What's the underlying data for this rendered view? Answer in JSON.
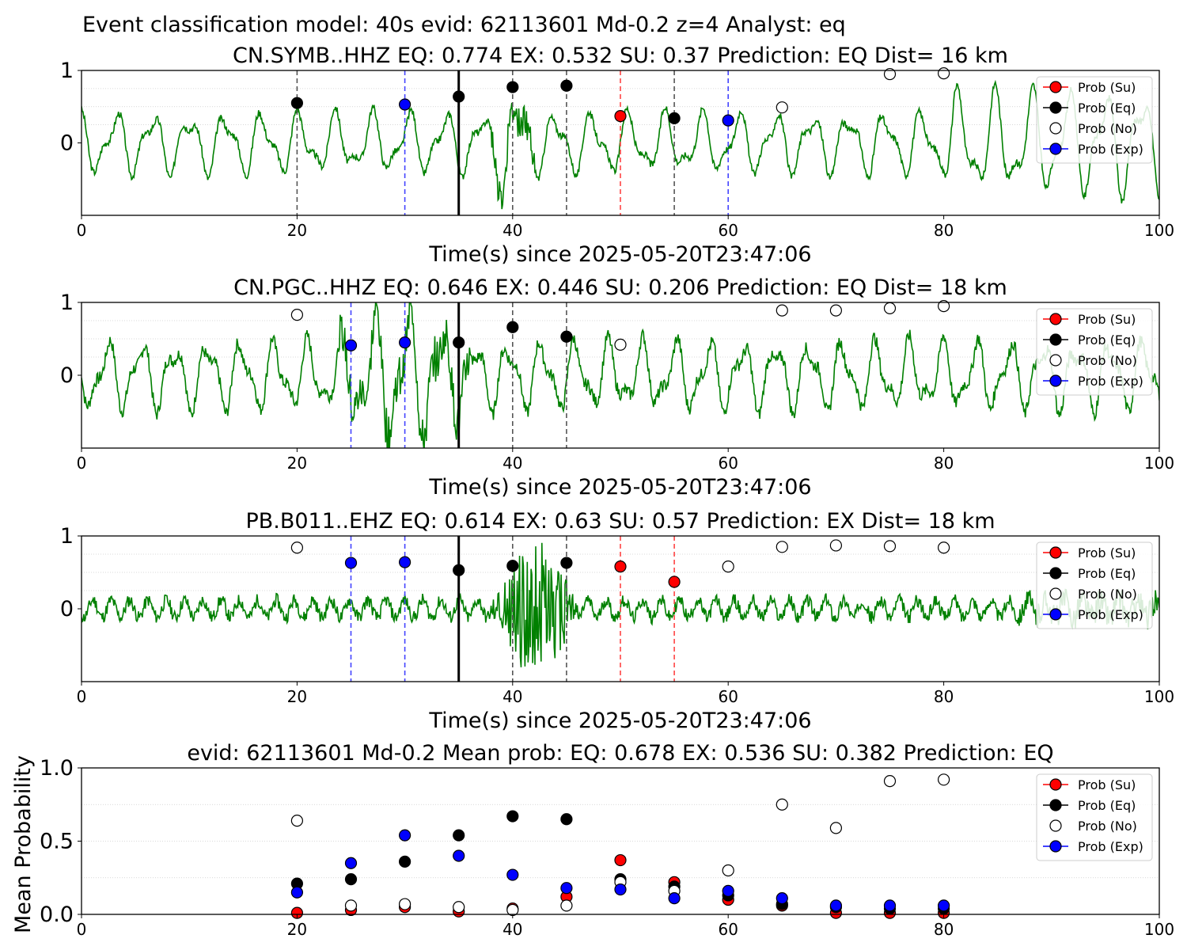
{
  "suptitle": "Event classification model: 40s evid: 62113601 Md-0.2 z=4 Analyst: eq",
  "colors": {
    "waveform": "#008000",
    "su": "#ff0000",
    "eq": "#000000",
    "no": "#ffffff",
    "exp": "#0000ff",
    "grid": "#cccccc"
  },
  "legend_labels": [
    "Prob (Su)",
    "Prob (Eq)",
    "Prob (No)",
    "Prob (Exp)"
  ],
  "chart_data": [
    {
      "type": "line",
      "title": "CN.SYMB..HHZ   EQ: 0.774  EX: 0.532  SU: 0.37   Prediction: EQ    Dist= 16 km",
      "xlabel": "Time(s) since 2025-05-20T23:47:06",
      "xlim": [
        0,
        100
      ],
      "ylim": [
        -1,
        1
      ],
      "xticks": [
        "0",
        "20",
        "40",
        "60",
        "80",
        "100"
      ],
      "yticks": [
        "0",
        "1"
      ],
      "grid": "horizontal dotted",
      "legend": "top-right",
      "event_time": 35,
      "vlines": [
        {
          "x": 20,
          "class": "eq"
        },
        {
          "x": 30,
          "class": "exp"
        },
        {
          "x": 40,
          "class": "eq"
        },
        {
          "x": 45,
          "class": "eq"
        },
        {
          "x": 50,
          "class": "su"
        },
        {
          "x": 55,
          "class": "eq"
        },
        {
          "x": 60,
          "class": "exp"
        }
      ],
      "points": [
        {
          "x": 20,
          "y": 0.55,
          "class": "eq"
        },
        {
          "x": 30,
          "y": 0.53,
          "class": "exp"
        },
        {
          "x": 35,
          "y": 0.64,
          "class": "eq"
        },
        {
          "x": 40,
          "y": 0.77,
          "class": "eq"
        },
        {
          "x": 45,
          "y": 0.79,
          "class": "eq"
        },
        {
          "x": 50,
          "y": 0.37,
          "class": "su"
        },
        {
          "x": 55,
          "y": 0.34,
          "class": "eq"
        },
        {
          "x": 60,
          "y": 0.31,
          "class": "exp"
        },
        {
          "x": 65,
          "y": 0.49,
          "class": "no"
        },
        {
          "x": 75,
          "y": 0.95,
          "class": "no"
        },
        {
          "x": 80,
          "y": 0.96,
          "class": "no"
        }
      ],
      "waveform": {
        "style": "smooth",
        "amplitude": 0.45,
        "period": 3.4,
        "noise": 0.05,
        "burst_start": 38,
        "burst_end": 42,
        "burst_amp": 0.35,
        "seed": 3,
        "late_amp": 0.75,
        "late_start": 78
      }
    },
    {
      "type": "line",
      "title": "CN.PGC..HHZ   EQ: 0.646  EX: 0.446  SU: 0.206   Prediction: EQ    Dist= 18 km",
      "xlabel": "Time(s) since 2025-05-20T23:47:06",
      "xlim": [
        0,
        100
      ],
      "ylim": [
        -1,
        1
      ],
      "xticks": [
        "0",
        "20",
        "40",
        "60",
        "80",
        "100"
      ],
      "yticks": [
        "0",
        "1"
      ],
      "grid": "horizontal dotted",
      "legend": "top-right",
      "event_time": 35,
      "vlines": [
        {
          "x": 25,
          "class": "exp"
        },
        {
          "x": 30,
          "class": "exp"
        },
        {
          "x": 40,
          "class": "eq"
        },
        {
          "x": 45,
          "class": "eq"
        }
      ],
      "points": [
        {
          "x": 20,
          "y": 0.83,
          "class": "no"
        },
        {
          "x": 25,
          "y": 0.41,
          "class": "exp"
        },
        {
          "x": 30,
          "y": 0.45,
          "class": "exp"
        },
        {
          "x": 35,
          "y": 0.45,
          "class": "eq"
        },
        {
          "x": 40,
          "y": 0.66,
          "class": "eq"
        },
        {
          "x": 45,
          "y": 0.53,
          "class": "eq"
        },
        {
          "x": 50,
          "y": 0.42,
          "class": "no"
        },
        {
          "x": 65,
          "y": 0.89,
          "class": "no"
        },
        {
          "x": 70,
          "y": 0.89,
          "class": "no"
        },
        {
          "x": 75,
          "y": 0.92,
          "class": "no"
        },
        {
          "x": 80,
          "y": 0.95,
          "class": "no"
        }
      ],
      "waveform": {
        "style": "smooth",
        "amplitude": 0.5,
        "period": 3.1,
        "noise": 0.09,
        "burst_start": 24,
        "burst_end": 36,
        "burst_amp": 0.45,
        "seed": 7,
        "late_amp": 0.5,
        "late_start": 90
      }
    },
    {
      "type": "line",
      "title": "PB.B011..EHZ   EQ: 0.614  EX: 0.63  SU: 0.57   Prediction: EX    Dist= 18 km",
      "xlabel": "Time(s) since 2025-05-20T23:47:06",
      "xlim": [
        0,
        100
      ],
      "ylim": [
        -1,
        1
      ],
      "xticks": [
        "0",
        "20",
        "40",
        "60",
        "80",
        "100"
      ],
      "yticks": [
        "0",
        "1"
      ],
      "grid": "horizontal dotted",
      "legend": "top-right",
      "event_time": 35,
      "vlines": [
        {
          "x": 25,
          "class": "exp"
        },
        {
          "x": 30,
          "class": "exp"
        },
        {
          "x": 40,
          "class": "eq"
        },
        {
          "x": 45,
          "class": "eq"
        },
        {
          "x": 50,
          "class": "su"
        },
        {
          "x": 55,
          "class": "su"
        }
      ],
      "points": [
        {
          "x": 20,
          "y": 0.84,
          "class": "no"
        },
        {
          "x": 25,
          "y": 0.63,
          "class": "exp"
        },
        {
          "x": 30,
          "y": 0.64,
          "class": "exp"
        },
        {
          "x": 35,
          "y": 0.53,
          "class": "eq"
        },
        {
          "x": 40,
          "y": 0.59,
          "class": "eq"
        },
        {
          "x": 45,
          "y": 0.63,
          "class": "eq"
        },
        {
          "x": 50,
          "y": 0.58,
          "class": "su"
        },
        {
          "x": 55,
          "y": 0.37,
          "class": "su"
        },
        {
          "x": 60,
          "y": 0.58,
          "class": "no"
        },
        {
          "x": 65,
          "y": 0.85,
          "class": "no"
        },
        {
          "x": 70,
          "y": 0.87,
          "class": "no"
        },
        {
          "x": 75,
          "y": 0.86,
          "class": "no"
        },
        {
          "x": 80,
          "y": 0.84,
          "class": "no"
        }
      ],
      "waveform": {
        "style": "noisy",
        "amplitude": 0.09,
        "noise": 0.12,
        "burst_start": 38,
        "burst_end": 46,
        "burst_amp": 0.85,
        "seed": 11,
        "late_amp": 0.18,
        "late_start": 85
      }
    },
    {
      "type": "scatter",
      "title": "evid: 62113601  Md-0.2   Mean prob:   EQ: 0.678  EX: 0.536  SU: 0.382   Prediction: EQ",
      "xlabel": "",
      "ylabel": "Mean Probability",
      "xlim": [
        0,
        100
      ],
      "ylim": [
        0,
        1
      ],
      "xticks": [
        "0",
        "20",
        "40",
        "60",
        "80",
        "100"
      ],
      "yticks": [
        "0.0",
        "0.5",
        "1.0"
      ],
      "grid": "horizontal dotted",
      "legend": "top-right",
      "x": [
        20,
        25,
        30,
        35,
        40,
        45,
        50,
        55,
        60,
        65,
        70,
        75,
        80
      ],
      "series": [
        {
          "name": "Prob (Su)",
          "class": "su",
          "values": [
            0.01,
            0.03,
            0.05,
            0.02,
            0.04,
            0.12,
            0.37,
            0.22,
            0.1,
            0.06,
            0.01,
            0.01,
            0.01
          ]
        },
        {
          "name": "Prob (Eq)",
          "class": "eq",
          "values": [
            0.21,
            0.24,
            0.36,
            0.54,
            0.67,
            0.65,
            0.24,
            0.19,
            0.13,
            0.07,
            0.05,
            0.04,
            0.04
          ]
        },
        {
          "name": "Prob (No)",
          "class": "no",
          "values": [
            0.64,
            0.06,
            0.07,
            0.05,
            0.03,
            0.06,
            0.22,
            0.16,
            0.3,
            0.75,
            0.59,
            0.91,
            0.92
          ]
        },
        {
          "name": "Prob (Exp)",
          "class": "exp",
          "values": [
            0.15,
            0.35,
            0.54,
            0.4,
            0.27,
            0.18,
            0.17,
            0.11,
            0.16,
            0.11,
            0.06,
            0.06,
            0.06
          ]
        }
      ]
    }
  ]
}
